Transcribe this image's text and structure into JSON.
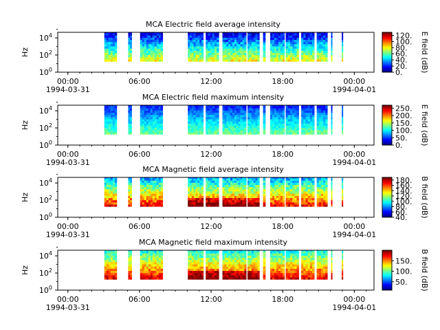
{
  "chart_data": [
    {
      "type": "heatmap",
      "title": "MCA  Electric field average intensity",
      "ylabel": "Hz",
      "y_scale": "log",
      "y_ticks": [
        {
          "base": "10",
          "exp": "0"
        },
        {
          "base": "10",
          "exp": "2"
        },
        {
          "base": "10",
          "exp": "4"
        }
      ],
      "x_ticks": [
        {
          "time": "00:00",
          "date": "1994-03-31"
        },
        {
          "time": "06:00",
          "date": ""
        },
        {
          "time": "12:00",
          "date": ""
        },
        {
          "time": "18:00",
          "date": ""
        },
        {
          "time": "00:00",
          "date": "1994-04-01"
        }
      ],
      "colorbar_label": "E field (dB)",
      "colorbar_ticks": [
        "0.",
        "20.",
        "40.",
        "60.",
        "80.",
        "100.",
        "120."
      ],
      "colorbar_range": [
        0,
        130
      ],
      "data_segments_hours": [
        [
          3.9,
          4.95
        ],
        [
          5.9,
          6.2
        ],
        [
          6.9,
          8.8
        ],
        [
          10.9,
          12.2
        ],
        [
          12.4,
          13.5
        ],
        [
          13.8,
          15.8
        ],
        [
          15.9,
          16.9
        ],
        [
          17.2,
          17.4
        ],
        [
          17.8,
          19.0
        ],
        [
          19.1,
          20.2
        ],
        [
          20.4,
          21.5
        ],
        [
          21.7,
          22.6
        ],
        [
          22.9,
          23.0
        ],
        [
          23.8,
          23.9
        ]
      ],
      "intensity_range_dB": [
        10,
        80
      ]
    },
    {
      "type": "heatmap",
      "title": "MCA  Electric field maximum intensity",
      "ylabel": "Hz",
      "y_scale": "log",
      "y_ticks": [
        {
          "base": "10",
          "exp": "0"
        },
        {
          "base": "10",
          "exp": "2"
        },
        {
          "base": "10",
          "exp": "4"
        }
      ],
      "x_ticks": [
        {
          "time": "00:00",
          "date": "1994-03-31"
        },
        {
          "time": "06:00",
          "date": ""
        },
        {
          "time": "12:00",
          "date": ""
        },
        {
          "time": "18:00",
          "date": ""
        },
        {
          "time": "00:00",
          "date": "1994-04-01"
        }
      ],
      "colorbar_label": "E field (dB)",
      "colorbar_ticks": [
        "0.",
        "50.",
        "100.",
        "150.",
        "200.",
        "250."
      ],
      "colorbar_range": [
        0,
        270
      ],
      "data_segments_hours": [
        [
          3.9,
          4.95
        ],
        [
          5.9,
          6.2
        ],
        [
          6.9,
          8.8
        ],
        [
          10.9,
          12.2
        ],
        [
          12.4,
          13.5
        ],
        [
          13.8,
          15.8
        ],
        [
          15.9,
          16.9
        ],
        [
          17.2,
          17.4
        ],
        [
          17.8,
          19.0
        ],
        [
          19.1,
          20.2
        ],
        [
          20.4,
          21.5
        ],
        [
          21.7,
          22.6
        ],
        [
          22.9,
          23.0
        ],
        [
          23.8,
          23.9
        ]
      ],
      "intensity_range_dB": [
        40,
        130
      ]
    },
    {
      "type": "heatmap",
      "title": "MCA  Magnetic field average intensity",
      "ylabel": "Hz",
      "y_scale": "log",
      "y_ticks": [
        {
          "base": "10",
          "exp": "0"
        },
        {
          "base": "10",
          "exp": "2"
        },
        {
          "base": "10",
          "exp": "4"
        }
      ],
      "x_ticks": [
        {
          "time": "00:00",
          "date": "1994-03-31"
        },
        {
          "time": "06:00",
          "date": ""
        },
        {
          "time": "12:00",
          "date": ""
        },
        {
          "time": "18:00",
          "date": ""
        },
        {
          "time": "00:00",
          "date": "1994-04-01"
        }
      ],
      "colorbar_label": "B field (dB)",
      "colorbar_ticks": [
        "40.",
        "60.",
        "80.",
        "100.",
        "120.",
        "140.",
        "160.",
        "180."
      ],
      "colorbar_range": [
        40,
        190
      ],
      "data_segments_hours": [
        [
          3.9,
          4.95
        ],
        [
          5.9,
          6.2
        ],
        [
          6.9,
          8.8
        ],
        [
          10.9,
          12.2
        ],
        [
          12.4,
          13.5
        ],
        [
          13.8,
          15.8
        ],
        [
          15.9,
          16.9
        ],
        [
          17.2,
          17.4
        ],
        [
          17.8,
          19.0
        ],
        [
          19.1,
          20.2
        ],
        [
          20.4,
          21.5
        ],
        [
          21.7,
          22.6
        ],
        [
          22.9,
          23.0
        ],
        [
          23.8,
          23.9
        ]
      ],
      "intensity_range_dB": [
        80,
        170
      ]
    },
    {
      "type": "heatmap",
      "title": "MCA  Magnetic field maximum intensity",
      "ylabel": "Hz",
      "y_scale": "log",
      "y_ticks": [
        {
          "base": "10",
          "exp": "0"
        },
        {
          "base": "10",
          "exp": "2"
        },
        {
          "base": "10",
          "exp": "4"
        }
      ],
      "x_ticks": [
        {
          "time": "00:00",
          "date": "1994-03-31"
        },
        {
          "time": "06:00",
          "date": ""
        },
        {
          "time": "12:00",
          "date": ""
        },
        {
          "time": "18:00",
          "date": ""
        },
        {
          "time": "00:00",
          "date": "1994-04-01"
        }
      ],
      "colorbar_label": "B field (dB)",
      "colorbar_ticks": [
        "50.",
        "100.",
        "150."
      ],
      "colorbar_range": [
        10,
        200
      ],
      "data_segments_hours": [
        [
          3.9,
          4.95
        ],
        [
          5.9,
          6.2
        ],
        [
          6.9,
          8.8
        ],
        [
          10.9,
          12.2
        ],
        [
          12.4,
          13.5
        ],
        [
          13.8,
          15.8
        ],
        [
          15.9,
          16.9
        ],
        [
          17.2,
          17.4
        ],
        [
          17.8,
          19.0
        ],
        [
          19.1,
          20.2
        ],
        [
          20.4,
          21.5
        ],
        [
          21.7,
          22.6
        ],
        [
          22.9,
          23.0
        ],
        [
          23.8,
          23.9
        ]
      ],
      "intensity_range_dB": [
        80,
        180
      ]
    }
  ]
}
